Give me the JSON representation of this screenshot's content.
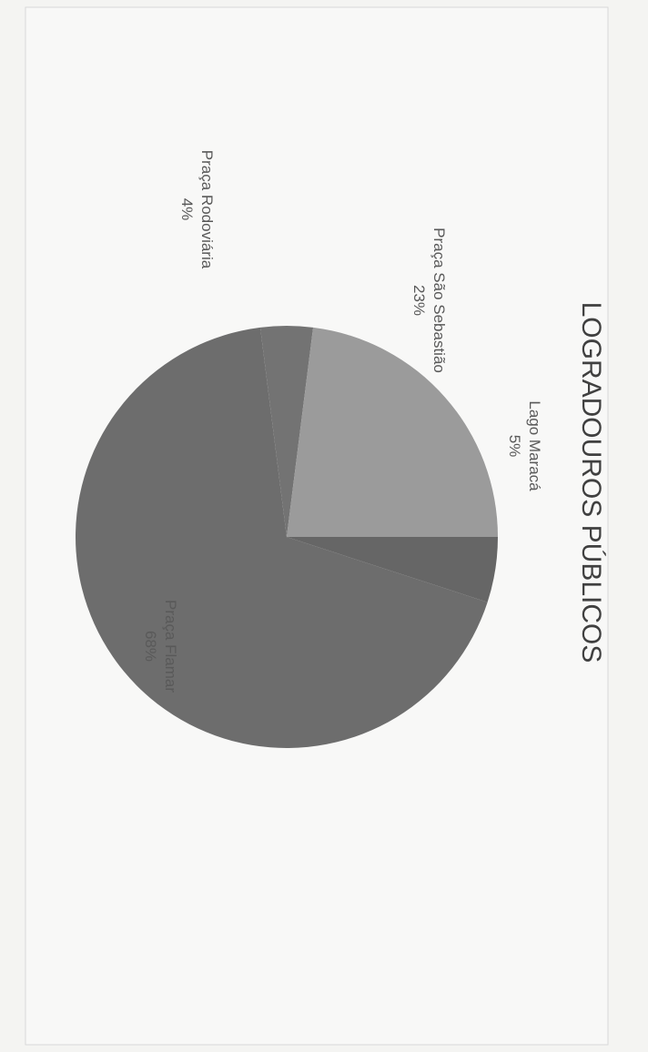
{
  "chart_data": {
    "type": "pie",
    "title": "LOGRADOUROS PÚBLICOS",
    "categories": [
      "Lago Maracá",
      "Praça Flamar",
      "Praça Rodoviária",
      "Praça São Sebastião"
    ],
    "values": [
      5,
      68,
      4,
      23
    ],
    "value_labels": [
      "5%",
      "68%",
      "4%",
      "23%"
    ],
    "colors": [
      "#666666",
      "#6d6d6d",
      "#737373",
      "#9b9b9b"
    ]
  }
}
